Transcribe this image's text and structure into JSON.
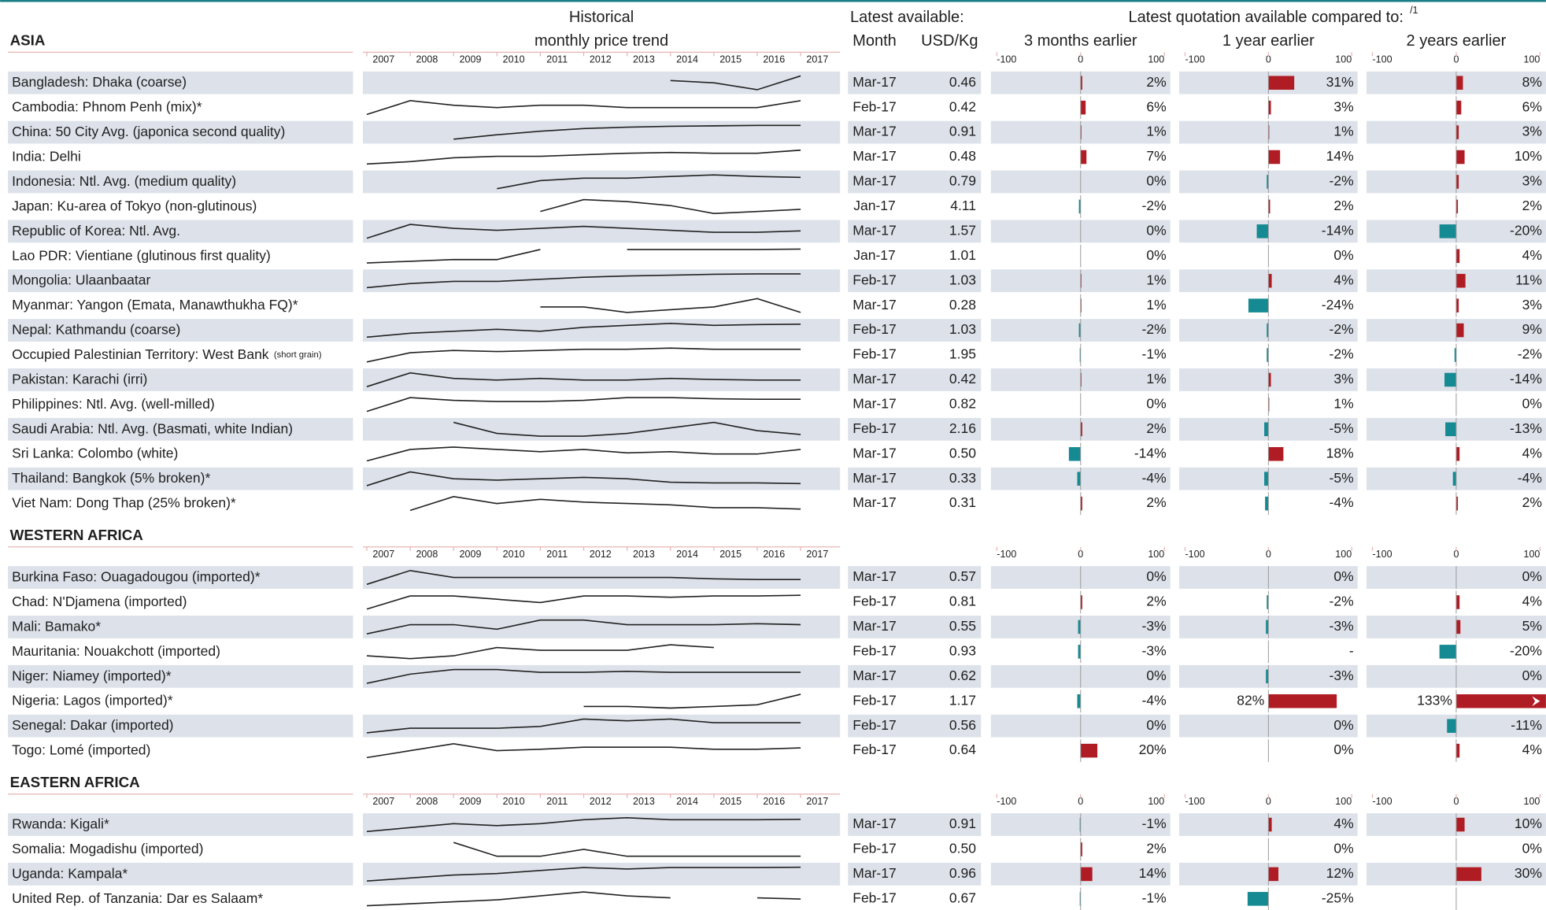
{
  "header": {
    "trend_line1": "Historical",
    "trend_line2": "monthly price trend",
    "latest": "Latest available:",
    "month": "Month",
    "price": "USD/Kg",
    "compare": "Latest quotation available compared to:",
    "compare_note": "/1",
    "periods": [
      "3 months earlier",
      "1 year earlier",
      "2 years earlier"
    ]
  },
  "years": [
    2007,
    2008,
    2009,
    2010,
    2011,
    2012,
    2013,
    2014,
    2015,
    2016,
    2017
  ],
  "bar_axis": {
    "lim": [
      -100,
      100
    ],
    "ticks": [
      -100,
      0,
      100
    ]
  },
  "colors": {
    "increase": "#b01c23",
    "decrease": "#168a93",
    "trend": "#222222",
    "shade": "#dde2ea"
  },
  "sections": [
    {
      "title": "ASIA",
      "rows": [
        {
          "name": "Bangladesh: Dhaka (coarse)",
          "month": "Mar-17",
          "price": "0.46",
          "trend": [
            null,
            null,
            null,
            null,
            null,
            null,
            null,
            0.44,
            0.43,
            0.4,
            0.46
          ],
          "changes": [
            2,
            31,
            8
          ],
          "change_labels": [
            "2%",
            "31%",
            "8%"
          ]
        },
        {
          "name": "Cambodia: Phnom Penh (mix)*",
          "month": "Feb-17",
          "price": "0.42",
          "trend": [
            0.3,
            0.42,
            0.38,
            0.36,
            0.38,
            0.38,
            0.36,
            0.36,
            0.36,
            0.36,
            0.42
          ],
          "changes": [
            6,
            3,
            6
          ],
          "change_labels": [
            "6%",
            "3%",
            "6%"
          ]
        },
        {
          "name": "China: 50 City Avg. (japonica second quality)",
          "month": "Mar-17",
          "price": "0.91",
          "trend": [
            null,
            null,
            0.6,
            0.7,
            0.78,
            0.84,
            0.87,
            0.89,
            0.9,
            0.91,
            0.91
          ],
          "changes": [
            1,
            1,
            3
          ],
          "change_labels": [
            "1%",
            "1%",
            "3%"
          ]
        },
        {
          "name": "India: Delhi",
          "month": "Mar-17",
          "price": "0.48",
          "trend": [
            0.3,
            0.33,
            0.38,
            0.4,
            0.4,
            0.42,
            0.44,
            0.45,
            0.44,
            0.44,
            0.48
          ],
          "changes": [
            7,
            14,
            10
          ],
          "change_labels": [
            "7%",
            "14%",
            "10%"
          ]
        },
        {
          "name": "Indonesia: Ntl. Avg. (medium quality)",
          "month": "Mar-17",
          "price": "0.79",
          "trend": [
            null,
            null,
            null,
            0.65,
            0.75,
            0.78,
            0.78,
            0.8,
            0.82,
            0.8,
            0.79
          ],
          "changes": [
            0,
            -2,
            3
          ],
          "change_labels": [
            "0%",
            "-2%",
            "3%"
          ]
        },
        {
          "name": "Japan: Ku-area of Tokyo (non-glutinous)",
          "month": "Jan-17",
          "price": "4.11",
          "trend": [
            null,
            null,
            null,
            null,
            4.0,
            4.6,
            4.5,
            4.3,
            3.9,
            4.0,
            4.11
          ],
          "changes": [
            -2,
            2,
            2
          ],
          "change_labels": [
            "-2%",
            "2%",
            "2%"
          ]
        },
        {
          "name": "Republic of Korea: Ntl. Avg.",
          "month": "Mar-17",
          "price": "1.57",
          "trend": [
            1.2,
            1.9,
            1.7,
            1.6,
            1.7,
            1.8,
            1.7,
            1.6,
            1.5,
            1.5,
            1.57
          ],
          "changes": [
            0,
            -14,
            -20
          ],
          "change_labels": [
            "0%",
            "-14%",
            "-20%"
          ]
        },
        {
          "name": "Lao PDR: Vientiane (glutinous first quality)",
          "month": "Jan-17",
          "price": "1.01",
          "trend": [
            0.6,
            0.65,
            0.7,
            0.7,
            1.0,
            null,
            1.0,
            1.0,
            1.0,
            1.0,
            1.01
          ],
          "changes": [
            0,
            0,
            4
          ],
          "change_labels": [
            "0%",
            "0%",
            "4%"
          ]
        },
        {
          "name": "Mongolia: Ulaanbaatar",
          "month": "Feb-17",
          "price": "1.03",
          "trend": [
            0.7,
            0.8,
            0.85,
            0.85,
            0.9,
            0.95,
            0.98,
            1.0,
            1.02,
            1.03,
            1.03
          ],
          "changes": [
            1,
            4,
            11
          ],
          "change_labels": [
            "1%",
            "4%",
            "11%"
          ]
        },
        {
          "name": "Myanmar: Yangon (Emata, Manawthukha FQ)*",
          "month": "Mar-17",
          "price": "0.28",
          "trend": [
            null,
            null,
            null,
            null,
            0.3,
            0.3,
            0.28,
            0.29,
            0.3,
            0.33,
            0.28
          ],
          "changes": [
            1,
            -24,
            3
          ],
          "change_labels": [
            "1%",
            "-24%",
            "3%"
          ]
        },
        {
          "name": "Nepal: Kathmandu (coarse)",
          "month": "Feb-17",
          "price": "1.03",
          "trend": [
            0.7,
            0.8,
            0.85,
            0.9,
            0.85,
            0.95,
            1.0,
            1.05,
            1.0,
            1.02,
            1.03
          ],
          "changes": [
            -2,
            -2,
            9
          ],
          "change_labels": [
            "-2%",
            "-2%",
            "9%"
          ]
        },
        {
          "name": "Occupied Palestinian Territory: West Bank",
          "name_note": "(short grain)",
          "month": "Feb-17",
          "price": "1.95",
          "trend": [
            1.4,
            1.8,
            1.9,
            1.85,
            1.9,
            1.95,
            1.95,
            2.0,
            1.95,
            1.95,
            1.95
          ],
          "changes": [
            -1,
            -2,
            -2
          ],
          "change_labels": [
            "-1%",
            "-2%",
            "-2%"
          ]
        },
        {
          "name": "Pakistan: Karachi (irri)",
          "month": "Mar-17",
          "price": "0.42",
          "trend": [
            0.3,
            0.55,
            0.45,
            0.42,
            0.45,
            0.42,
            0.42,
            0.45,
            0.43,
            0.42,
            0.42
          ],
          "changes": [
            1,
            3,
            -14
          ],
          "change_labels": [
            "1%",
            "3%",
            "-14%"
          ]
        },
        {
          "name": "Philippines: Ntl. Avg. (well-milled)",
          "month": "Mar-17",
          "price": "0.82",
          "trend": [
            0.6,
            0.85,
            0.8,
            0.78,
            0.78,
            0.8,
            0.85,
            0.85,
            0.83,
            0.82,
            0.82
          ],
          "changes": [
            0,
            1,
            0
          ],
          "change_labels": [
            "0%",
            "1%",
            "0%"
          ]
        },
        {
          "name": "Saudi Arabia: Ntl. Avg.  (Basmati, white Indian)",
          "month": "Feb-17",
          "price": "2.16",
          "trend": [
            null,
            null,
            2.6,
            2.2,
            2.1,
            2.1,
            2.2,
            2.4,
            2.6,
            2.3,
            2.16
          ],
          "changes": [
            2,
            -5,
            -13
          ],
          "change_labels": [
            "2%",
            "-5%",
            "-13%"
          ]
        },
        {
          "name": "Sri Lanka: Colombo (white)",
          "month": "Mar-17",
          "price": "0.50",
          "trend": [
            0.4,
            0.5,
            0.52,
            0.5,
            0.48,
            0.5,
            0.47,
            0.48,
            0.46,
            0.46,
            0.5
          ],
          "changes": [
            -14,
            18,
            4
          ],
          "change_labels": [
            "-14%",
            "18%",
            "4%"
          ]
        },
        {
          "name": "Thailand: Bangkok (5% broken)*",
          "month": "Mar-17",
          "price": "0.33",
          "trend": [
            0.3,
            0.5,
            0.4,
            0.38,
            0.4,
            0.42,
            0.4,
            0.35,
            0.34,
            0.34,
            0.33
          ],
          "changes": [
            -4,
            -5,
            -4
          ],
          "change_labels": [
            "-4%",
            "-5%",
            "-4%"
          ]
        },
        {
          "name": "Viet Nam: Dong Thap (25% broken)*",
          "month": "Mar-17",
          "price": "0.31",
          "trend": [
            null,
            0.3,
            0.4,
            0.35,
            0.38,
            0.36,
            0.35,
            0.34,
            0.32,
            0.32,
            0.31
          ],
          "changes": [
            2,
            -4,
            2
          ],
          "change_labels": [
            "2%",
            "-4%",
            "2%"
          ]
        }
      ]
    },
    {
      "title": "WESTERN AFRICA",
      "rows": [
        {
          "name": "Burkina Faso: Ouagadougou (imported)*",
          "month": "Mar-17",
          "price": "0.57",
          "trend": [
            0.5,
            0.7,
            0.6,
            0.6,
            0.6,
            0.6,
            0.6,
            0.6,
            0.58,
            0.57,
            0.57
          ],
          "changes": [
            0,
            0,
            0
          ],
          "change_labels": [
            "0%",
            "0%",
            "0%"
          ]
        },
        {
          "name": "Chad:  N'Djamena (imported)",
          "month": "Feb-17",
          "price": "0.81",
          "trend": [
            0.6,
            0.8,
            0.8,
            0.75,
            0.7,
            0.8,
            0.8,
            0.78,
            0.8,
            0.8,
            0.81
          ],
          "changes": [
            2,
            -2,
            4
          ],
          "change_labels": [
            "2%",
            "-2%",
            "4%"
          ]
        },
        {
          "name": "Mali: Bamako*",
          "month": "Mar-17",
          "price": "0.55",
          "trend": [
            0.45,
            0.55,
            0.55,
            0.5,
            0.6,
            0.6,
            0.55,
            0.55,
            0.55,
            0.56,
            0.55
          ],
          "changes": [
            -3,
            -3,
            5
          ],
          "change_labels": [
            "-3%",
            "-3%",
            "5%"
          ]
        },
        {
          "name": "Mauritania: Nouakchott (imported)",
          "month": "Feb-17",
          "price": "0.93",
          "trend": [
            0.8,
            0.75,
            0.8,
            0.95,
            0.9,
            0.9,
            0.9,
            1.0,
            0.95,
            null,
            0.93
          ],
          "changes": [
            -3,
            null,
            -20
          ],
          "change_labels": [
            "-3%",
            "-",
            "-20%"
          ]
        },
        {
          "name": "Niger: Niamey (imported)*",
          "month": "Mar-17",
          "price": "0.62",
          "trend": [
            0.5,
            0.6,
            0.65,
            0.65,
            0.62,
            0.62,
            0.63,
            0.62,
            0.62,
            0.62,
            0.62
          ],
          "changes": [
            0,
            -3,
            0
          ],
          "change_labels": [
            "0%",
            "-3%",
            "0%"
          ]
        },
        {
          "name": "Nigeria: Lagos (imported)*",
          "month": "Feb-17",
          "price": "1.17",
          "trend": [
            null,
            null,
            null,
            null,
            null,
            0.8,
            0.8,
            0.75,
            0.8,
            0.85,
            1.17
          ],
          "changes": [
            -4,
            82,
            133
          ],
          "change_labels": [
            "-4%",
            "82%",
            "133%"
          ]
        },
        {
          "name": "Senegal: Dakar (imported)",
          "month": "Feb-17",
          "price": "0.56",
          "trend": [
            0.45,
            0.5,
            0.5,
            0.5,
            0.52,
            0.6,
            0.58,
            0.6,
            0.56,
            0.56,
            0.56
          ],
          "changes": [
            0,
            0,
            -11
          ],
          "change_labels": [
            "0%",
            "0%",
            "-11%"
          ]
        },
        {
          "name": "Togo: Lomé (imported)",
          "month": "Feb-17",
          "price": "0.64",
          "trend": [
            0.5,
            0.6,
            0.7,
            0.6,
            0.62,
            0.65,
            0.65,
            0.65,
            0.62,
            0.62,
            0.64
          ],
          "changes": [
            20,
            0,
            4
          ],
          "change_labels": [
            "20%",
            "0%",
            "4%"
          ]
        }
      ]
    },
    {
      "title": "EASTERN AFRICA",
      "rows": [
        {
          "name": "Rwanda: Kigali*",
          "month": "Mar-17",
          "price": "0.91",
          "trend": [
            0.6,
            0.7,
            0.8,
            0.75,
            0.8,
            0.9,
            0.95,
            0.9,
            0.9,
            0.9,
            0.91
          ],
          "changes": [
            -1,
            4,
            10
          ],
          "change_labels": [
            "-1%",
            "4%",
            "10%"
          ]
        },
        {
          "name": "Somalia: Mogadishu (imported)",
          "month": "Feb-17",
          "price": "0.50",
          "trend": [
            null,
            null,
            0.6,
            0.5,
            0.5,
            0.55,
            0.5,
            0.5,
            0.5,
            0.5,
            0.5
          ],
          "changes": [
            2,
            0,
            0
          ],
          "change_labels": [
            "2%",
            "0%",
            "0%"
          ]
        },
        {
          "name": "Uganda:  Kampala*",
          "month": "Mar-17",
          "price": "0.96",
          "trend": [
            0.5,
            0.6,
            0.7,
            0.75,
            0.85,
            0.95,
            0.9,
            0.95,
            0.95,
            0.95,
            0.96
          ],
          "changes": [
            14,
            12,
            30
          ],
          "change_labels": [
            "14%",
            "12%",
            "30%"
          ]
        },
        {
          "name": "United Rep. of Tanzania: Dar es Salaam*",
          "month": "Feb-17",
          "price": "0.67",
          "trend": [
            0.5,
            0.55,
            0.6,
            0.65,
            0.75,
            0.85,
            0.75,
            0.7,
            null,
            0.7,
            0.67
          ],
          "changes": [
            -1,
            -25,
            null
          ],
          "change_labels": [
            "-1%",
            "-25%",
            null
          ]
        }
      ]
    }
  ]
}
